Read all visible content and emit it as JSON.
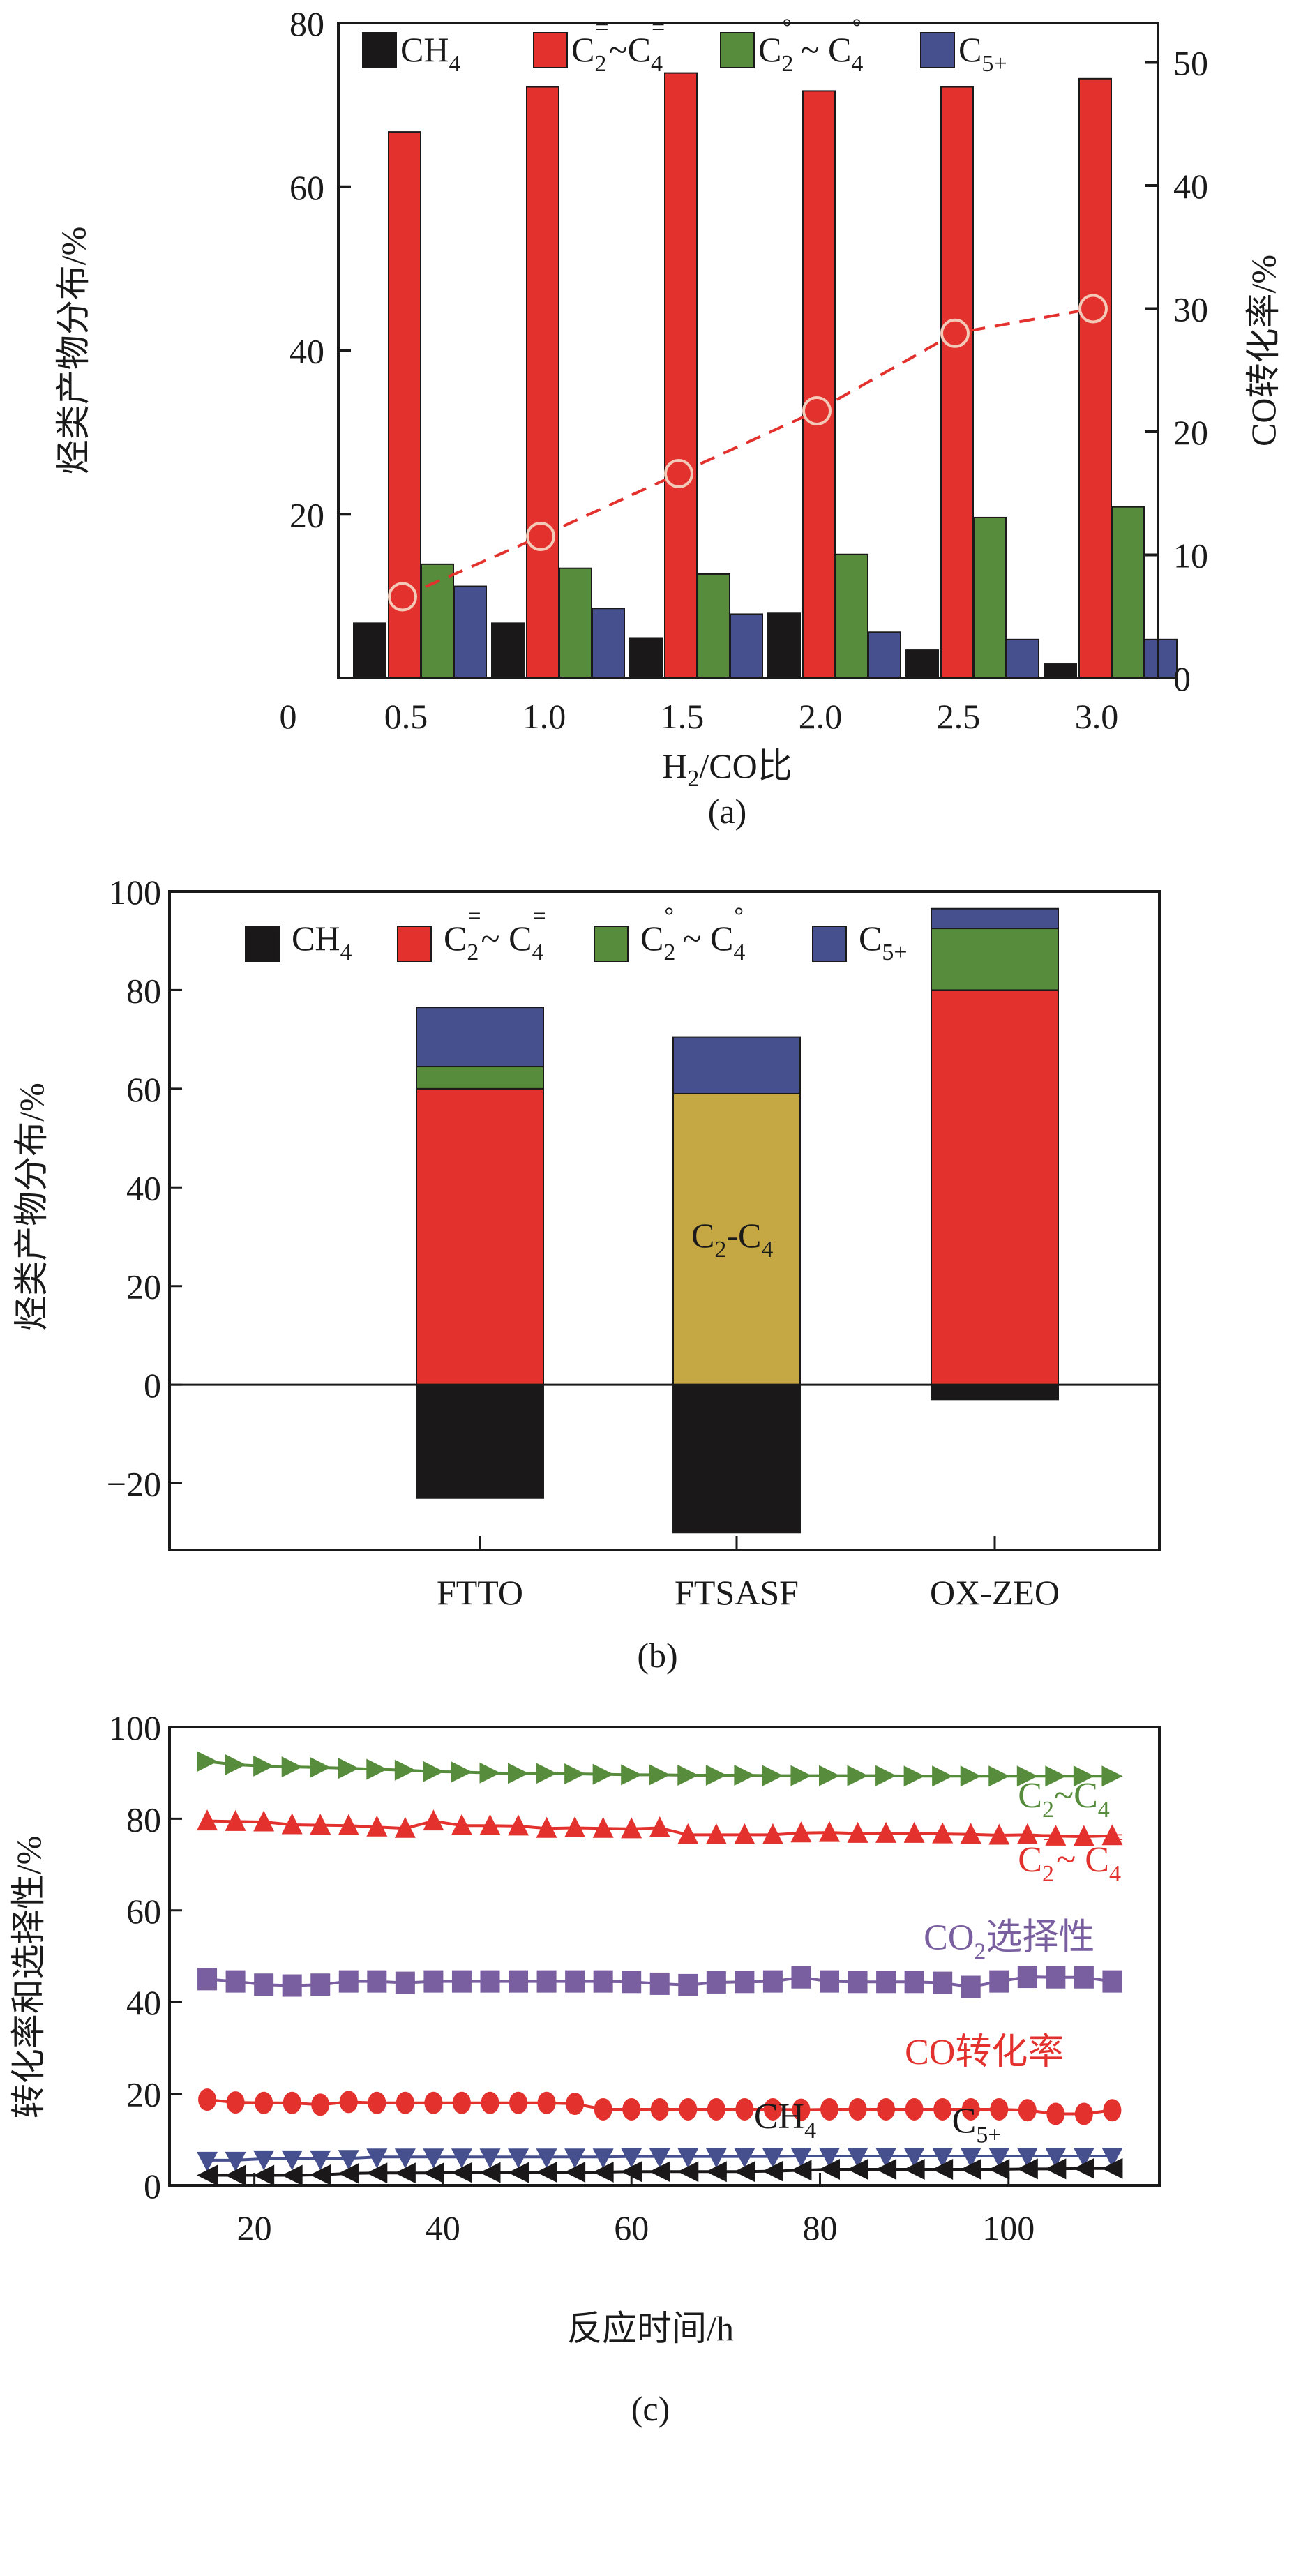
{
  "colors": {
    "CH4": "#1a1818",
    "olefins": "#e3312d",
    "paraffins": "#568c3b",
    "C5plus": "#46508f",
    "C2C4_total": "#c5a843",
    "CO2_sel": "#7a5fa0",
    "CO_conv": "#e3312d",
    "C2C4_line": "#568c3b",
    "axis": "#1a1a1a"
  },
  "chart_data": [
    {
      "id": "a",
      "type": "bar",
      "panel_label": "(a)",
      "title": "",
      "xlabel": "H2/CO比",
      "xlabel_parts": {
        "main": "H",
        "sub": "2",
        "rest": "/CO比"
      },
      "ylabel": "烃类产物分布/%",
      "ylabel_right": "CO转化率/%",
      "ylim": [
        0,
        80
      ],
      "ylim_right": [
        0,
        53
      ],
      "yticks": [
        20,
        40,
        60,
        80
      ],
      "yticks_right": [
        0,
        10,
        20,
        30,
        40,
        50
      ],
      "x_zero_label": "0",
      "categories": [
        "0.5",
        "1.0",
        "1.5",
        "2.0",
        "2.5",
        "3.0"
      ],
      "legend_position": "top",
      "series": [
        {
          "name": "CH4",
          "label_main": "CH",
          "label_sub": "4",
          "label_sup": "",
          "color_key": "CH4",
          "values": [
            6.7,
            6.7,
            4.9,
            7.9,
            3.4,
            1.7
          ]
        },
        {
          "name": "C2=~C4=",
          "label_main": "C",
          "label_sub": "2",
          "label_sup": "=",
          "label_tail": "~C",
          "label_sub2": "4",
          "label_sup2": "=",
          "color_key": "olefins",
          "values": [
            66.7,
            72.2,
            73.9,
            71.7,
            72.2,
            73.2
          ]
        },
        {
          "name": "C2°~C4°",
          "label_main": "C",
          "label_sub": "2",
          "label_sup": "°",
          "label_tail": " ~ C",
          "label_sub2": "4",
          "label_sup2": "°",
          "color_key": "paraffins",
          "values": [
            13.9,
            13.4,
            12.7,
            15.1,
            19.6,
            20.9
          ]
        },
        {
          "name": "C5+",
          "label_main": "C",
          "label_sub": "5+",
          "label_sup": "",
          "color_key": "C5plus",
          "values": [
            11.2,
            8.5,
            7.8,
            5.6,
            4.7,
            4.7
          ]
        }
      ],
      "line_series": {
        "name": "CO转化率",
        "axis": "right",
        "color_key": "CO_conv",
        "values": [
          6.6,
          11.5,
          16.6,
          21.7,
          28.0,
          30.0
        ]
      }
    },
    {
      "id": "b",
      "type": "bar",
      "stacked": true,
      "panel_label": "(b)",
      "title": "",
      "xlabel": "",
      "ylabel": "烃类产物分布/%",
      "ylim": [
        -35,
        100
      ],
      "yticks": [
        -20,
        0,
        20,
        40,
        60,
        80,
        100
      ],
      "ytick_labels": [
        "−20",
        "0",
        "20",
        "40",
        "60",
        "80",
        "100"
      ],
      "categories": [
        "FTTO",
        "FTSASF",
        "OX-ZEO"
      ],
      "legend_position": "top-left",
      "legend": [
        {
          "name": "CH4",
          "label_main": "CH",
          "label_sub": "4",
          "color_key": "CH4"
        },
        {
          "name": "C2=~C4=",
          "label_main": "C",
          "label_sub": "2",
          "label_sup": "=",
          "label_tail": "~ C",
          "label_sub2": "4",
          "label_sup2": "=",
          "color_key": "olefins"
        },
        {
          "name": "C2°~C4°",
          "label_main": "C",
          "label_sub": "2",
          "label_sup": "°",
          "label_tail": " ~ C",
          "label_sub2": "4",
          "label_sup2": "°",
          "color_key": "paraffins"
        },
        {
          "name": "C5+",
          "label_main": "C",
          "label_sub": "5+",
          "color_key": "C5plus"
        }
      ],
      "stacks": [
        {
          "category": "FTTO",
          "segments": [
            {
              "name": "CH4",
              "value": -23.0,
              "color_key": "CH4"
            },
            {
              "name": "C2=~C4=",
              "value": 60.0,
              "color_key": "olefins"
            },
            {
              "name": "C2°~C4°",
              "value": 4.5,
              "color_key": "paraffins"
            },
            {
              "name": "C5+",
              "value": 12.0,
              "color_key": "C5plus"
            }
          ]
        },
        {
          "category": "FTSASF",
          "segments": [
            {
              "name": "CH4",
              "value": -30.0,
              "color_key": "CH4"
            },
            {
              "name": "C2-C4",
              "value": 59.0,
              "color_key": "C2C4_total"
            },
            {
              "name": "C5+",
              "value": 11.5,
              "color_key": "C5plus"
            }
          ]
        },
        {
          "category": "OX-ZEO",
          "segments": [
            {
              "name": "CH4",
              "value": -3.0,
              "color_key": "CH4"
            },
            {
              "name": "C2=~C4=",
              "value": 80.0,
              "color_key": "olefins"
            },
            {
              "name": "C2°~C4°",
              "value": 12.5,
              "color_key": "paraffins"
            },
            {
              "name": "C5+",
              "value": 4.0,
              "color_key": "C5plus"
            }
          ]
        }
      ],
      "annotation": {
        "text_main": "C",
        "text_sub": "2",
        "text_mid": "-C",
        "text_sub2": "4",
        "category": "FTSASF",
        "y": 30
      }
    },
    {
      "id": "c",
      "type": "line",
      "panel_label": "(c)",
      "title": "",
      "xlabel": "反应时间/h",
      "ylabel": "转化率和选择性/%",
      "xlim": [
        11,
        116
      ],
      "ylim": [
        0,
        100
      ],
      "xticks": [
        20,
        40,
        60,
        80,
        100
      ],
      "yticks": [
        0,
        20,
        40,
        60,
        80,
        100
      ],
      "x": [
        15,
        18,
        21,
        24,
        27,
        30,
        33,
        36,
        39,
        42,
        45,
        48,
        51,
        54,
        57,
        60,
        63,
        66,
        69,
        72,
        75,
        78,
        81,
        84,
        87,
        90,
        93,
        96,
        99,
        102,
        105,
        108,
        111
      ],
      "series": [
        {
          "name": "C2~C4",
          "marker": "triangle-right",
          "color_key": "C2C4_line",
          "values": [
            92.5,
            91.8,
            91.5,
            91.3,
            91.2,
            91.0,
            90.8,
            90.6,
            90.3,
            90.2,
            90.0,
            89.9,
            89.9,
            89.8,
            89.7,
            89.6,
            89.6,
            89.5,
            89.5,
            89.5,
            89.4,
            89.4,
            89.4,
            89.4,
            89.4,
            89.3,
            89.3,
            89.3,
            89.3,
            89.3,
            89.3,
            89.3,
            89.3
          ]
        },
        {
          "name": "C2=~C4=",
          "marker": "triangle-up",
          "color_key": "olefins",
          "values": [
            79.5,
            79.4,
            79.3,
            78.7,
            78.6,
            78.5,
            78.2,
            77.9,
            79.5,
            78.5,
            78.5,
            78.4,
            77.9,
            78.0,
            77.9,
            77.8,
            78.0,
            76.5,
            76.5,
            76.5,
            76.5,
            76.9,
            77.0,
            76.8,
            76.8,
            76.8,
            76.7,
            76.6,
            76.4,
            76.5,
            76.2,
            76.1,
            76.3
          ]
        },
        {
          "name": "CO2选择性",
          "marker": "square",
          "color_key": "CO2_sel",
          "values": [
            45.0,
            44.5,
            43.8,
            43.6,
            43.8,
            44.5,
            44.5,
            44.2,
            44.5,
            44.5,
            44.5,
            44.5,
            44.5,
            44.5,
            44.5,
            44.4,
            44.0,
            43.7,
            44.3,
            44.4,
            44.5,
            45.4,
            44.5,
            44.4,
            44.4,
            44.4,
            44.2,
            43.3,
            44.5,
            45.5,
            45.4,
            45.4,
            44.5
          ]
        },
        {
          "name": "CO转化率",
          "marker": "circle",
          "color_key": "CO_conv",
          "values": [
            18.7,
            18.1,
            18.0,
            18.0,
            17.6,
            18.2,
            18.0,
            18.0,
            18.0,
            18.0,
            18.0,
            18.0,
            18.0,
            17.8,
            16.6,
            16.6,
            16.6,
            16.6,
            16.6,
            16.6,
            16.6,
            16.5,
            16.6,
            16.6,
            16.6,
            16.6,
            16.6,
            16.6,
            16.6,
            16.4,
            15.6,
            15.6,
            16.4
          ]
        },
        {
          "name": "C5+",
          "marker": "triangle-down",
          "color_key": "C5plus",
          "values": [
            5.5,
            5.5,
            5.8,
            5.8,
            5.8,
            5.9,
            6.2,
            6.2,
            6.2,
            6.2,
            6.2,
            6.2,
            6.2,
            6.2,
            6.2,
            6.3,
            6.3,
            6.3,
            6.3,
            6.3,
            6.3,
            6.4,
            6.4,
            6.4,
            6.4,
            6.4,
            6.4,
            6.4,
            6.4,
            6.4,
            6.4,
            6.4,
            6.4
          ]
        },
        {
          "name": "CH4",
          "marker": "triangle-left",
          "color_key": "CH4",
          "values": [
            2.2,
            2.2,
            2.2,
            2.2,
            2.3,
            2.6,
            2.7,
            2.7,
            2.7,
            2.8,
            2.8,
            2.8,
            2.9,
            2.9,
            2.9,
            3.0,
            3.0,
            3.0,
            3.0,
            3.0,
            3.1,
            3.3,
            3.5,
            3.5,
            3.5,
            3.5,
            3.5,
            3.5,
            3.5,
            3.6,
            3.6,
            3.7,
            3.7
          ]
        }
      ],
      "labels": [
        {
          "series": "C2~C4",
          "main": "C",
          "sub": "2",
          "tail": "~C",
          "sub2": "4",
          "x": 101,
          "y": 82.5,
          "color_key": "C2C4_line"
        },
        {
          "series": "C2=~C4=",
          "main": "C",
          "sub": "2",
          "sup": "=",
          "tail": "~ C",
          "sub2": "4",
          "sup2": "=",
          "x": 101,
          "y": 68.5,
          "color_key": "olefins"
        },
        {
          "series": "CO2选择性",
          "main": "CO",
          "sub": "2",
          "tail": "选择性",
          "x": 91,
          "y": 51.5,
          "color_key": "CO2_sel"
        },
        {
          "series": "CO转化率",
          "main": "CO转化率",
          "x": 89,
          "y": 26.5,
          "color_key": "CO_conv"
        },
        {
          "series": "CH4",
          "main": "CH",
          "sub": "4",
          "x": 73,
          "y": 12.5,
          "color_key": "CH4"
        },
        {
          "series": "C5+",
          "main": "C",
          "sub": "5+",
          "x": 94,
          "y": 11.5,
          "color_key": "CH4"
        }
      ]
    }
  ]
}
